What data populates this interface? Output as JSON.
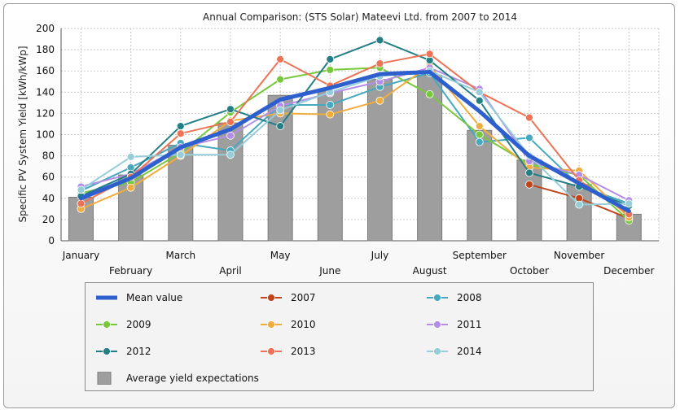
{
  "chart_data": {
    "type": "bar+line",
    "title": "Annual Comparison: (STS Solar) Mateevi Ltd. from 2007 to 2014",
    "xlabel": "",
    "ylabel": "Specific PV System Yield [kWh/kWp]",
    "ylim": [
      0,
      200
    ],
    "yticks": [
      0,
      20,
      40,
      60,
      80,
      100,
      120,
      140,
      160,
      180,
      200
    ],
    "grid": true,
    "legend_position": "bottom",
    "categories": [
      "January",
      "February",
      "March",
      "April",
      "May",
      "June",
      "July",
      "August",
      "September",
      "October",
      "November",
      "December"
    ],
    "bars": {
      "name": "Average yield expectations",
      "color": "#9e9e9e",
      "values": [
        41,
        62,
        90,
        111,
        137,
        141,
        152,
        156,
        104,
        76,
        53,
        25
      ]
    },
    "mean": {
      "name": "Mean value",
      "color": "#2e5fcf",
      "values": [
        40,
        59,
        88,
        105,
        133,
        144,
        157,
        159,
        122,
        80,
        54,
        28
      ]
    },
    "series": [
      {
        "name": "2007",
        "color": "#c1441a",
        "values": [
          null,
          null,
          null,
          null,
          null,
          null,
          null,
          null,
          null,
          53,
          40,
          21
        ]
      },
      {
        "name": "2008",
        "color": "#46a9be",
        "values": [
          47,
          69,
          92,
          85,
          128,
          128,
          145,
          158,
          93,
          97,
          52,
          35
        ]
      },
      {
        "name": "2009",
        "color": "#78c83c",
        "values": [
          45,
          55,
          83,
          121,
          152,
          161,
          163,
          138,
          100,
          72,
          62,
          19
        ]
      },
      {
        "name": "2010",
        "color": "#f1ac3e",
        "values": [
          30,
          50,
          80,
          113,
          120,
          119,
          132,
          165,
          108,
          69,
          66,
          22
        ]
      },
      {
        "name": "2011",
        "color": "#b48ee6",
        "values": [
          51,
          63,
          88,
          99,
          127,
          139,
          150,
          163,
          143,
          75,
          62,
          38
        ]
      },
      {
        "name": "2012",
        "color": "#247e86",
        "values": [
          42,
          63,
          108,
          124,
          108,
          171,
          189,
          170,
          132,
          64,
          51,
          33
        ]
      },
      {
        "name": "2013",
        "color": "#ed7356",
        "values": [
          35,
          60,
          101,
          112,
          171,
          146,
          167,
          176,
          140,
          116,
          57,
          25
        ]
      },
      {
        "name": "2014",
        "color": "#96cdd8",
        "values": [
          48,
          79,
          81,
          81,
          123,
          140,
          155,
          160,
          140,
          80,
          34,
          35
        ]
      }
    ]
  },
  "legend": {
    "items": [
      {
        "label": "Mean value",
        "kind": "mean",
        "color": "#2e5fcf"
      },
      {
        "label": "2007",
        "kind": "line",
        "color": "#c1441a"
      },
      {
        "label": "2008",
        "kind": "line",
        "color": "#46a9be"
      },
      {
        "label": "2009",
        "kind": "line",
        "color": "#78c83c"
      },
      {
        "label": "2010",
        "kind": "line",
        "color": "#f1ac3e"
      },
      {
        "label": "2011",
        "kind": "line",
        "color": "#b48ee6"
      },
      {
        "label": "2012",
        "kind": "line",
        "color": "#247e86"
      },
      {
        "label": "2013",
        "kind": "line",
        "color": "#ed7356"
      },
      {
        "label": "2014",
        "kind": "line",
        "color": "#96cdd8"
      },
      {
        "label": "Average yield expectations",
        "kind": "bar",
        "color": "#9e9e9e"
      }
    ]
  }
}
